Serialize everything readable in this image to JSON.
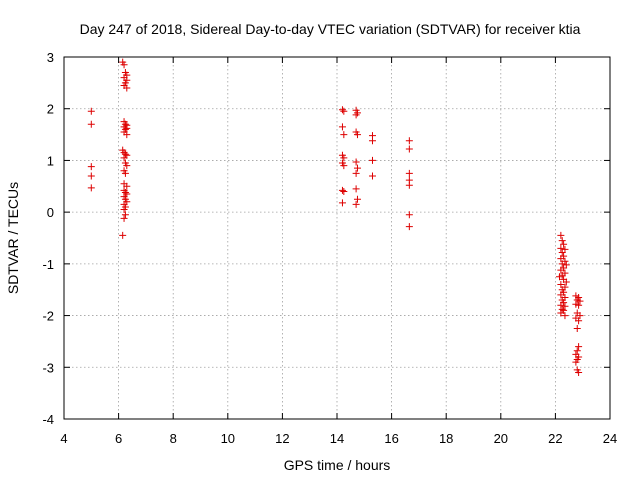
{
  "chart_data": {
    "type": "scatter",
    "title": "Day 247 of 2018, Sidereal Day-to-day VTEC variation (SDTVAR) for receiver ktia",
    "xlabel": "GPS time / hours",
    "ylabel": "SDTVAR / TECUs",
    "xlim": [
      4,
      24
    ],
    "ylim": [
      -4,
      3
    ],
    "xticks": [
      "4",
      "6",
      "8",
      "10",
      "12",
      "14",
      "16",
      "18",
      "20",
      "22",
      "24"
    ],
    "yticks": [
      "3",
      "2",
      "1",
      "0",
      "-1",
      "-2",
      "-3",
      "-4"
    ],
    "grid": true,
    "marker": "+",
    "series_color": "#dd0000",
    "series": [
      {
        "name": "SDTVAR",
        "points": [
          [
            5.0,
            1.95
          ],
          [
            5.0,
            1.7
          ],
          [
            5.0,
            0.88
          ],
          [
            5.0,
            0.7
          ],
          [
            5.0,
            0.47
          ],
          [
            6.15,
            2.9
          ],
          [
            6.2,
            2.85
          ],
          [
            6.25,
            2.7
          ],
          [
            6.3,
            2.65
          ],
          [
            6.2,
            2.6
          ],
          [
            6.3,
            2.55
          ],
          [
            6.25,
            2.5
          ],
          [
            6.2,
            2.45
          ],
          [
            6.3,
            2.4
          ],
          [
            6.2,
            1.75
          ],
          [
            6.25,
            1.7
          ],
          [
            6.3,
            1.68
          ],
          [
            6.2,
            1.65
          ],
          [
            6.3,
            1.62
          ],
          [
            6.25,
            1.6
          ],
          [
            6.2,
            1.55
          ],
          [
            6.3,
            1.5
          ],
          [
            6.15,
            1.2
          ],
          [
            6.2,
            1.15
          ],
          [
            6.25,
            1.12
          ],
          [
            6.3,
            1.1
          ],
          [
            6.2,
            1.05
          ],
          [
            6.25,
            0.95
          ],
          [
            6.3,
            0.9
          ],
          [
            6.2,
            0.8
          ],
          [
            6.25,
            0.75
          ],
          [
            6.2,
            0.55
          ],
          [
            6.3,
            0.5
          ],
          [
            6.2,
            0.42
          ],
          [
            6.25,
            0.38
          ],
          [
            6.3,
            0.35
          ],
          [
            6.2,
            0.3
          ],
          [
            6.25,
            0.25
          ],
          [
            6.3,
            0.2
          ],
          [
            6.2,
            0.15
          ],
          [
            6.25,
            0.1
          ],
          [
            6.2,
            0.05
          ],
          [
            6.25,
            -0.05
          ],
          [
            6.2,
            -0.12
          ],
          [
            6.15,
            -0.45
          ],
          [
            14.2,
            1.98
          ],
          [
            14.25,
            1.95
          ],
          [
            14.2,
            1.65
          ],
          [
            14.25,
            1.5
          ],
          [
            14.2,
            1.1
          ],
          [
            14.25,
            1.05
          ],
          [
            14.2,
            0.95
          ],
          [
            14.25,
            0.9
          ],
          [
            14.2,
            0.42
          ],
          [
            14.25,
            0.4
          ],
          [
            14.2,
            0.18
          ],
          [
            14.7,
            1.97
          ],
          [
            14.75,
            1.92
          ],
          [
            14.7,
            1.88
          ],
          [
            14.7,
            1.55
          ],
          [
            14.75,
            1.5
          ],
          [
            14.7,
            0.97
          ],
          [
            14.75,
            0.85
          ],
          [
            14.7,
            0.75
          ],
          [
            14.7,
            0.45
          ],
          [
            14.75,
            0.25
          ],
          [
            14.7,
            0.15
          ],
          [
            15.3,
            1.48
          ],
          [
            15.3,
            1.38
          ],
          [
            15.3,
            1.0
          ],
          [
            15.3,
            0.7
          ],
          [
            16.65,
            1.38
          ],
          [
            16.65,
            1.22
          ],
          [
            16.65,
            0.75
          ],
          [
            16.65,
            0.62
          ],
          [
            16.65,
            0.52
          ],
          [
            16.65,
            -0.05
          ],
          [
            16.65,
            -0.28
          ],
          [
            22.2,
            -0.45
          ],
          [
            22.25,
            -0.55
          ],
          [
            22.3,
            -0.62
          ],
          [
            22.2,
            -0.7
          ],
          [
            22.35,
            -0.72
          ],
          [
            22.25,
            -0.78
          ],
          [
            22.3,
            -0.85
          ],
          [
            22.2,
            -0.9
          ],
          [
            22.35,
            -0.95
          ],
          [
            22.25,
            -1.0
          ],
          [
            22.4,
            -1.02
          ],
          [
            22.3,
            -1.08
          ],
          [
            22.2,
            -1.12
          ],
          [
            22.35,
            -1.18
          ],
          [
            22.25,
            -1.22
          ],
          [
            22.15,
            -1.25
          ],
          [
            22.3,
            -1.3
          ],
          [
            22.4,
            -1.35
          ],
          [
            22.2,
            -1.4
          ],
          [
            22.35,
            -1.45
          ],
          [
            22.25,
            -1.5
          ],
          [
            22.3,
            -1.55
          ],
          [
            22.2,
            -1.6
          ],
          [
            22.35,
            -1.65
          ],
          [
            22.25,
            -1.7
          ],
          [
            22.3,
            -1.75
          ],
          [
            22.2,
            -1.8
          ],
          [
            22.35,
            -1.82
          ],
          [
            22.25,
            -1.88
          ],
          [
            22.3,
            -1.9
          ],
          [
            22.2,
            -1.95
          ],
          [
            22.35,
            -2.0
          ],
          [
            22.75,
            -1.62
          ],
          [
            22.85,
            -1.65
          ],
          [
            22.8,
            -1.7
          ],
          [
            22.9,
            -1.72
          ],
          [
            22.75,
            -1.78
          ],
          [
            22.85,
            -1.8
          ],
          [
            22.8,
            -1.95
          ],
          [
            22.9,
            -2.0
          ],
          [
            22.75,
            -2.05
          ],
          [
            22.85,
            -2.1
          ],
          [
            22.8,
            -2.25
          ],
          [
            22.85,
            -2.6
          ],
          [
            22.8,
            -2.68
          ],
          [
            22.75,
            -2.75
          ],
          [
            22.85,
            -2.8
          ],
          [
            22.8,
            -2.85
          ],
          [
            22.75,
            -2.9
          ],
          [
            22.8,
            -3.05
          ],
          [
            22.85,
            -3.1
          ]
        ]
      }
    ]
  }
}
